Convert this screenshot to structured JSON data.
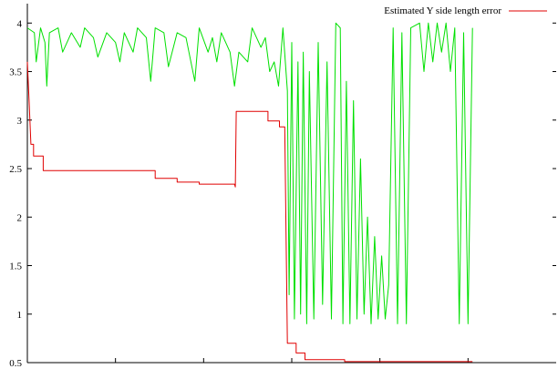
{
  "chart_data": {
    "type": "line",
    "title": "",
    "xlabel": "",
    "ylabel": "",
    "xlim": [
      0,
      6
    ],
    "ylim": [
      0.5,
      4.2
    ],
    "x_ticks": [
      1,
      2,
      3,
      4,
      5
    ],
    "y_ticks": [
      {
        "value": 0.5,
        "label": "0.5"
      },
      {
        "value": 1,
        "label": "1"
      },
      {
        "value": 1.5,
        "label": "1.5"
      },
      {
        "value": 2,
        "label": "2"
      },
      {
        "value": 2.5,
        "label": "2.5"
      },
      {
        "value": 3,
        "label": "3"
      },
      {
        "value": 3.5,
        "label": "3.5"
      },
      {
        "value": 4,
        "label": "4"
      }
    ],
    "grid": false,
    "legend_position": "top-right",
    "series": [
      {
        "name": "Estimated Y side length error",
        "color": "#e00000",
        "points": [
          [
            0,
            3.6
          ],
          [
            0.02,
            3.2
          ],
          [
            0.04,
            2.75
          ],
          [
            0.07,
            2.75
          ],
          [
            0.07,
            2.63
          ],
          [
            0.18,
            2.63
          ],
          [
            0.18,
            2.48
          ],
          [
            1.45,
            2.48
          ],
          [
            1.45,
            2.4
          ],
          [
            1.7,
            2.4
          ],
          [
            1.7,
            2.36
          ],
          [
            1.95,
            2.36
          ],
          [
            1.95,
            2.34
          ],
          [
            2.35,
            2.34
          ],
          [
            2.36,
            2.31
          ],
          [
            2.37,
            3.09
          ],
          [
            2.73,
            3.09
          ],
          [
            2.73,
            2.99
          ],
          [
            2.86,
            2.99
          ],
          [
            2.86,
            2.93
          ],
          [
            2.92,
            2.93
          ],
          [
            2.95,
            0.7
          ],
          [
            3.05,
            0.7
          ],
          [
            3.05,
            0.6
          ],
          [
            3.15,
            0.6
          ],
          [
            3.15,
            0.53
          ],
          [
            3.6,
            0.53
          ],
          [
            3.6,
            0.51
          ],
          [
            5.05,
            0.51
          ]
        ]
      },
      {
        "name": "",
        "color": "#00e000",
        "points": [
          [
            0,
            3.95
          ],
          [
            0.08,
            3.9
          ],
          [
            0.1,
            3.6
          ],
          [
            0.15,
            3.95
          ],
          [
            0.2,
            3.8
          ],
          [
            0.22,
            3.35
          ],
          [
            0.25,
            3.9
          ],
          [
            0.35,
            3.95
          ],
          [
            0.4,
            3.7
          ],
          [
            0.5,
            3.9
          ],
          [
            0.6,
            3.75
          ],
          [
            0.65,
            3.95
          ],
          [
            0.75,
            3.85
          ],
          [
            0.8,
            3.65
          ],
          [
            0.9,
            3.9
          ],
          [
            1.0,
            3.8
          ],
          [
            1.05,
            3.6
          ],
          [
            1.1,
            3.9
          ],
          [
            1.2,
            3.7
          ],
          [
            1.25,
            3.95
          ],
          [
            1.35,
            3.85
          ],
          [
            1.4,
            3.4
          ],
          [
            1.45,
            3.95
          ],
          [
            1.55,
            3.9
          ],
          [
            1.6,
            3.55
          ],
          [
            1.7,
            3.9
          ],
          [
            1.8,
            3.85
          ],
          [
            1.9,
            3.4
          ],
          [
            1.95,
            3.95
          ],
          [
            2.05,
            3.7
          ],
          [
            2.1,
            3.85
          ],
          [
            2.15,
            3.6
          ],
          [
            2.2,
            3.9
          ],
          [
            2.3,
            3.7
          ],
          [
            2.35,
            3.35
          ],
          [
            2.4,
            3.7
          ],
          [
            2.5,
            3.6
          ],
          [
            2.55,
            3.95
          ],
          [
            2.65,
            3.75
          ],
          [
            2.7,
            3.85
          ],
          [
            2.75,
            3.5
          ],
          [
            2.8,
            3.6
          ],
          [
            2.85,
            3.35
          ],
          [
            2.9,
            3.95
          ],
          [
            2.95,
            3.3
          ],
          [
            2.97,
            1.2
          ],
          [
            3.0,
            3.8
          ],
          [
            3.03,
            0.95
          ],
          [
            3.07,
            3.6
          ],
          [
            3.1,
            1.0
          ],
          [
            3.13,
            3.7
          ],
          [
            3.17,
            0.9
          ],
          [
            3.2,
            3.5
          ],
          [
            3.25,
            0.95
          ],
          [
            3.3,
            3.8
          ],
          [
            3.35,
            1.1
          ],
          [
            3.4,
            3.6
          ],
          [
            3.45,
            0.95
          ],
          [
            3.5,
            4.0
          ],
          [
            3.55,
            3.95
          ],
          [
            3.58,
            0.9
          ],
          [
            3.62,
            3.4
          ],
          [
            3.66,
            0.9
          ],
          [
            3.7,
            3.2
          ],
          [
            3.74,
            0.95
          ],
          [
            3.78,
            2.6
          ],
          [
            3.82,
            1.0
          ],
          [
            3.86,
            2.0
          ],
          [
            3.9,
            0.9
          ],
          [
            3.94,
            1.8
          ],
          [
            3.98,
            0.95
          ],
          [
            4.02,
            1.6
          ],
          [
            4.06,
            0.95
          ],
          [
            4.1,
            1.3
          ],
          [
            4.15,
            3.95
          ],
          [
            4.2,
            0.9
          ],
          [
            4.25,
            3.9
          ],
          [
            4.3,
            0.9
          ],
          [
            4.35,
            3.95
          ],
          [
            4.45,
            4.0
          ],
          [
            4.5,
            3.5
          ],
          [
            4.55,
            4.0
          ],
          [
            4.6,
            3.6
          ],
          [
            4.65,
            4.0
          ],
          [
            4.7,
            3.7
          ],
          [
            4.75,
            4.0
          ],
          [
            4.8,
            3.5
          ],
          [
            4.85,
            3.95
          ],
          [
            4.9,
            0.9
          ],
          [
            4.95,
            3.9
          ],
          [
            5.0,
            0.9
          ],
          [
            5.05,
            3.95
          ]
        ]
      }
    ]
  }
}
